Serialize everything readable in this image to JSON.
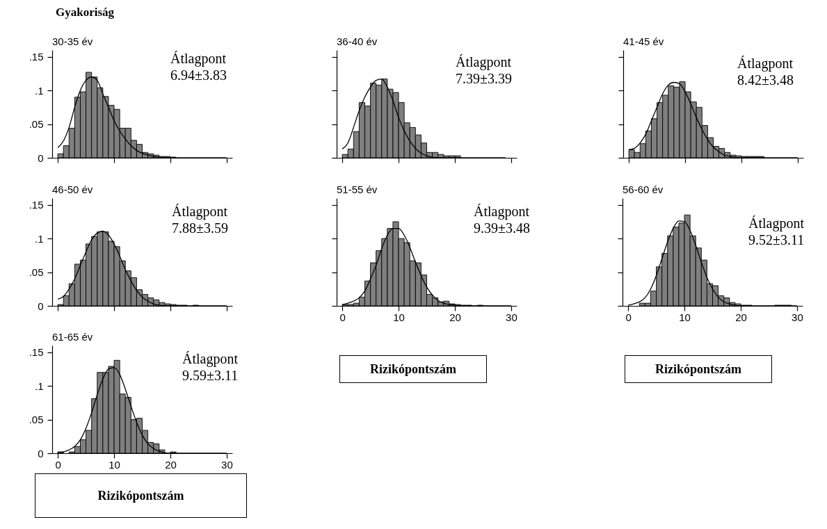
{
  "chart_data": [
    {
      "type": "histogram",
      "title": "30-35 év",
      "ylabel": "Gyakoriság",
      "annotations": [
        "Átlagpont",
        "6.94±3.83"
      ],
      "color": "#7f7f7f",
      "tick_labels": "y",
      "xlim": [
        -1,
        31
      ],
      "xticks": [
        0,
        10,
        20,
        30
      ],
      "ylim": [
        0,
        0.16
      ],
      "yticks": [
        {
          "value": 0,
          "label": "0"
        },
        {
          "value": 0.05,
          "label": ".05"
        },
        {
          "value": 0.1,
          "label": ".1"
        },
        {
          "value": 0.15,
          "label": ".15"
        }
      ],
      "bins": [
        0,
        1,
        2,
        3,
        4,
        5,
        6,
        7,
        8,
        9,
        10,
        11,
        12,
        13,
        14,
        15,
        16,
        17,
        18,
        19,
        20,
        21
      ],
      "values": [
        0.006,
        0.018,
        0.044,
        0.09,
        0.098,
        0.127,
        0.12,
        0.104,
        0.091,
        0.078,
        0.072,
        0.044,
        0.044,
        0.026,
        0.02,
        0.008,
        0.006,
        0.004,
        0.002,
        0.002,
        0.001
      ],
      "series": [
        {
          "type": "line",
          "color": "#000000",
          "x": [
            0,
            1,
            2,
            3,
            4,
            5,
            6,
            7,
            8,
            9,
            10,
            11,
            12,
            13,
            14,
            16,
            18,
            20,
            30
          ],
          "values": [
            0.015,
            0.025,
            0.045,
            0.075,
            0.1,
            0.115,
            0.12,
            0.115,
            0.095,
            0.075,
            0.055,
            0.04,
            0.028,
            0.018,
            0.011,
            0.004,
            0.001,
            0,
            0
          ]
        }
      ]
    },
    {
      "type": "histogram",
      "title": "36-40 év",
      "annotations": [
        "Átlagpont",
        "7.39±3.39"
      ],
      "color": "#7f7f7f",
      "tick_labels": false,
      "xlim": [
        -1,
        31
      ],
      "xticks": [
        0,
        10,
        20,
        30
      ],
      "ylim": [
        0,
        0.16
      ],
      "yticks": [
        {
          "value": 0,
          "label": null
        },
        {
          "value": 0.05,
          "label": null
        },
        {
          "value": 0.1,
          "label": null
        },
        {
          "value": 0.15,
          "label": null
        }
      ],
      "bins": [
        0,
        1,
        2,
        3,
        4,
        5,
        6,
        7,
        8,
        9,
        10,
        11,
        12,
        13,
        14,
        15,
        16,
        17,
        18,
        19,
        20,
        21
      ],
      "values": [
        0.005,
        0.013,
        0.039,
        0.082,
        0.077,
        0.111,
        0.108,
        0.117,
        0.102,
        0.097,
        0.082,
        0.052,
        0.045,
        0.034,
        0.022,
        0.008,
        0.008,
        0.005,
        0.003,
        0.003,
        0.003
      ],
      "series": [
        {
          "type": "line",
          "color": "#000000",
          "x": [
            0,
            1,
            2,
            3,
            4,
            5,
            6,
            7,
            8,
            9,
            10,
            11,
            12,
            13,
            14,
            15,
            16,
            18,
            29
          ],
          "values": [
            0.013,
            0.022,
            0.045,
            0.07,
            0.09,
            0.105,
            0.115,
            0.117,
            0.105,
            0.085,
            0.06,
            0.04,
            0.025,
            0.014,
            0.007,
            0.003,
            0.001,
            0,
            0
          ]
        }
      ]
    },
    {
      "type": "histogram",
      "title": "41-45 év",
      "annotations": [
        "Átlagpont",
        "8.42±3.48"
      ],
      "color": "#7f7f7f",
      "tick_labels": false,
      "xlim": [
        -1,
        31
      ],
      "xticks": [
        0,
        10,
        20,
        30
      ],
      "ylim": [
        0,
        0.16
      ],
      "yticks": [
        {
          "value": 0,
          "label": null
        },
        {
          "value": 0.05,
          "label": null
        },
        {
          "value": 0.1,
          "label": null
        },
        {
          "value": 0.15,
          "label": null
        }
      ],
      "bins": [
        0,
        1,
        2,
        3,
        4,
        5,
        6,
        7,
        8,
        9,
        10,
        11,
        12,
        13,
        14,
        15,
        16,
        17,
        18,
        19,
        20,
        21,
        22,
        23,
        24
      ],
      "values": [
        0.012,
        0.008,
        0.021,
        0.04,
        0.058,
        0.082,
        0.093,
        0.107,
        0.105,
        0.113,
        0.098,
        0.083,
        0.075,
        0.048,
        0.03,
        0.017,
        0.014,
        0.008,
        0.004,
        0.003,
        0.002,
        0.002,
        0.002,
        0.002
      ],
      "series": [
        {
          "type": "line",
          "color": "#000000",
          "x": [
            0,
            1,
            2,
            3,
            4,
            5,
            6,
            7,
            8,
            9,
            10,
            11,
            12,
            13,
            14,
            15,
            16,
            17,
            18,
            20,
            30
          ],
          "values": [
            0.012,
            0.014,
            0.022,
            0.035,
            0.055,
            0.075,
            0.095,
            0.108,
            0.112,
            0.11,
            0.098,
            0.08,
            0.06,
            0.042,
            0.027,
            0.016,
            0.009,
            0.004,
            0.002,
            0,
            0
          ]
        }
      ]
    },
    {
      "type": "histogram",
      "title": "46-50 év",
      "annotations": [
        "Átlagpont",
        "7.88±3.59"
      ],
      "color": "#7f7f7f",
      "tick_labels": "y",
      "xlim": [
        -1,
        31
      ],
      "xticks": [
        0,
        10,
        20,
        30
      ],
      "ylim": [
        0,
        0.16
      ],
      "yticks": [
        {
          "value": 0,
          "label": "0"
        },
        {
          "value": 0.05,
          "label": ".05"
        },
        {
          "value": 0.1,
          "label": ".1"
        },
        {
          "value": 0.15,
          "label": ".15"
        }
      ],
      "bins": [
        0,
        1,
        2,
        3,
        4,
        5,
        6,
        7,
        8,
        9,
        10,
        11,
        12,
        13,
        14,
        15,
        16,
        17,
        18,
        19,
        20,
        21,
        22,
        23,
        24,
        25
      ],
      "values": [
        0.002,
        0.015,
        0.033,
        0.062,
        0.068,
        0.092,
        0.103,
        0.11,
        0.11,
        0.096,
        0.088,
        0.067,
        0.052,
        0.042,
        0.024,
        0.017,
        0.012,
        0.009,
        0.005,
        0.003,
        0.002,
        0.001,
        0.001,
        null,
        0.001
      ],
      "series": [
        {
          "type": "line",
          "color": "#000000",
          "x": [
            0,
            1,
            2,
            3,
            4,
            5,
            6,
            7,
            8,
            9,
            10,
            11,
            12,
            13,
            14,
            15,
            16,
            17,
            18,
            20,
            30
          ],
          "values": [
            0.01,
            0.014,
            0.025,
            0.04,
            0.06,
            0.08,
            0.098,
            0.108,
            0.111,
            0.105,
            0.092,
            0.074,
            0.054,
            0.037,
            0.023,
            0.013,
            0.007,
            0.003,
            0.001,
            0,
            0
          ]
        }
      ]
    },
    {
      "type": "histogram",
      "title": "51-55 év",
      "xlabel": "Rizikópontszám",
      "annotations": [
        "Átlagpont",
        "9.39±3.48"
      ],
      "color": "#7f7f7f",
      "tick_labels": "x",
      "xlim": [
        -1,
        31
      ],
      "xticks": [
        0,
        10,
        20,
        30
      ],
      "ylim": [
        0,
        0.16
      ],
      "yticks": [
        {
          "value": 0,
          "label": null
        },
        {
          "value": 0.05,
          "label": null
        },
        {
          "value": 0.1,
          "label": null
        },
        {
          "value": 0.15,
          "label": null
        }
      ],
      "bins": [
        0,
        1,
        2,
        3,
        4,
        5,
        6,
        7,
        8,
        9,
        10,
        11,
        12,
        13,
        14,
        15,
        16,
        17,
        18,
        19,
        20,
        21,
        22,
        23,
        24,
        25
      ],
      "values": [
        0.002,
        0.002,
        0.004,
        0.013,
        0.037,
        0.064,
        0.082,
        0.1,
        0.115,
        0.125,
        0.1,
        0.094,
        0.067,
        0.064,
        0.046,
        0.017,
        0.012,
        0.006,
        0.007,
        0.003,
        0.002,
        0.001,
        0.001,
        null,
        0.001
      ],
      "series": [
        {
          "type": "line",
          "color": "#000000",
          "x": [
            0,
            1,
            2,
            3,
            4,
            5,
            6,
            7,
            8,
            9,
            10,
            11,
            12,
            13,
            14,
            15,
            16,
            17,
            18,
            20,
            22,
            30
          ],
          "values": [
            0.002,
            0.004,
            0.007,
            0.012,
            0.022,
            0.04,
            0.06,
            0.085,
            0.105,
            0.115,
            0.115,
            0.105,
            0.087,
            0.065,
            0.045,
            0.028,
            0.016,
            0.008,
            0.004,
            0.001,
            0,
            0
          ]
        }
      ]
    },
    {
      "type": "histogram",
      "title": "56-60 év",
      "xlabel": "Rizikópontszám",
      "annotations": [
        "Átlagpont",
        "9.52±3.11"
      ],
      "color": "#7f7f7f",
      "tick_labels": "x",
      "xlim": [
        -1,
        31
      ],
      "xticks": [
        0,
        10,
        20,
        30
      ],
      "ylim": [
        0,
        0.16
      ],
      "yticks": [
        {
          "value": 0,
          "label": null
        },
        {
          "value": 0.05,
          "label": null
        },
        {
          "value": 0.1,
          "label": null
        },
        {
          "value": 0.15,
          "label": null
        }
      ],
      "bins": [
        2,
        3,
        4,
        5,
        6,
        7,
        8,
        9,
        10,
        11,
        12,
        13,
        14,
        15,
        16,
        17,
        18,
        19,
        20,
        21,
        22,
        23,
        24,
        25,
        26,
        27,
        28,
        29
      ],
      "values": [
        0.004,
        0.004,
        0.022,
        0.058,
        0.078,
        0.104,
        0.117,
        0.123,
        0.135,
        0.104,
        0.086,
        0.068,
        0.033,
        0.03,
        0.015,
        0.012,
        0.005,
        0.003,
        0.001,
        0.001,
        null,
        null,
        null,
        null,
        0.001,
        0.001,
        0.001
      ],
      "series": [
        {
          "type": "line",
          "color": "#000000",
          "x": [
            0,
            1,
            2,
            3,
            4,
            5,
            6,
            7,
            8,
            9,
            10,
            11,
            12,
            13,
            14,
            15,
            16,
            17,
            18,
            20,
            30
          ],
          "values": [
            0.001,
            0.003,
            0.006,
            0.012,
            0.025,
            0.045,
            0.07,
            0.095,
            0.115,
            0.126,
            0.125,
            0.112,
            0.09,
            0.065,
            0.042,
            0.025,
            0.013,
            0.006,
            0.003,
            0,
            0
          ]
        }
      ]
    },
    {
      "type": "histogram",
      "title": "61-65 év",
      "xlabel": "Rizikópontszám",
      "annotations": [
        "Átlagpont",
        "9.59±3.11"
      ],
      "color": "#7f7f7f",
      "xlim": [
        -1,
        31
      ],
      "xticks": [
        0,
        10,
        20,
        30
      ],
      "ylim": [
        0,
        0.16
      ],
      "yticks": [
        {
          "value": 0,
          "label": "0"
        },
        {
          "value": 0.05,
          "label": ".05"
        },
        {
          "value": 0.1,
          "label": ".1"
        },
        {
          "value": 0.15,
          "label": ".15"
        }
      ],
      "bins": [
        0,
        1,
        2,
        3,
        4,
        5,
        6,
        7,
        8,
        9,
        10,
        11,
        12,
        13,
        14,
        15,
        16,
        17,
        18,
        19,
        20,
        21
      ],
      "values": [
        0.002,
        null,
        0.002,
        0.01,
        0.02,
        0.034,
        0.081,
        0.12,
        0.12,
        0.129,
        0.138,
        0.088,
        0.083,
        0.05,
        0.052,
        0.034,
        0.016,
        0.014,
        0.005,
        null,
        0.002
      ],
      "series": [
        {
          "type": "line",
          "color": "#000000",
          "x": [
            0,
            1,
            2,
            3,
            4,
            5,
            6,
            7,
            8,
            9,
            10,
            11,
            12,
            13,
            14,
            15,
            16,
            17,
            18,
            20,
            30
          ],
          "values": [
            0.001,
            0.002,
            0.005,
            0.01,
            0.02,
            0.037,
            0.06,
            0.087,
            0.11,
            0.125,
            0.127,
            0.117,
            0.095,
            0.07,
            0.046,
            0.027,
            0.014,
            0.007,
            0.003,
            0,
            0
          ]
        }
      ]
    }
  ]
}
